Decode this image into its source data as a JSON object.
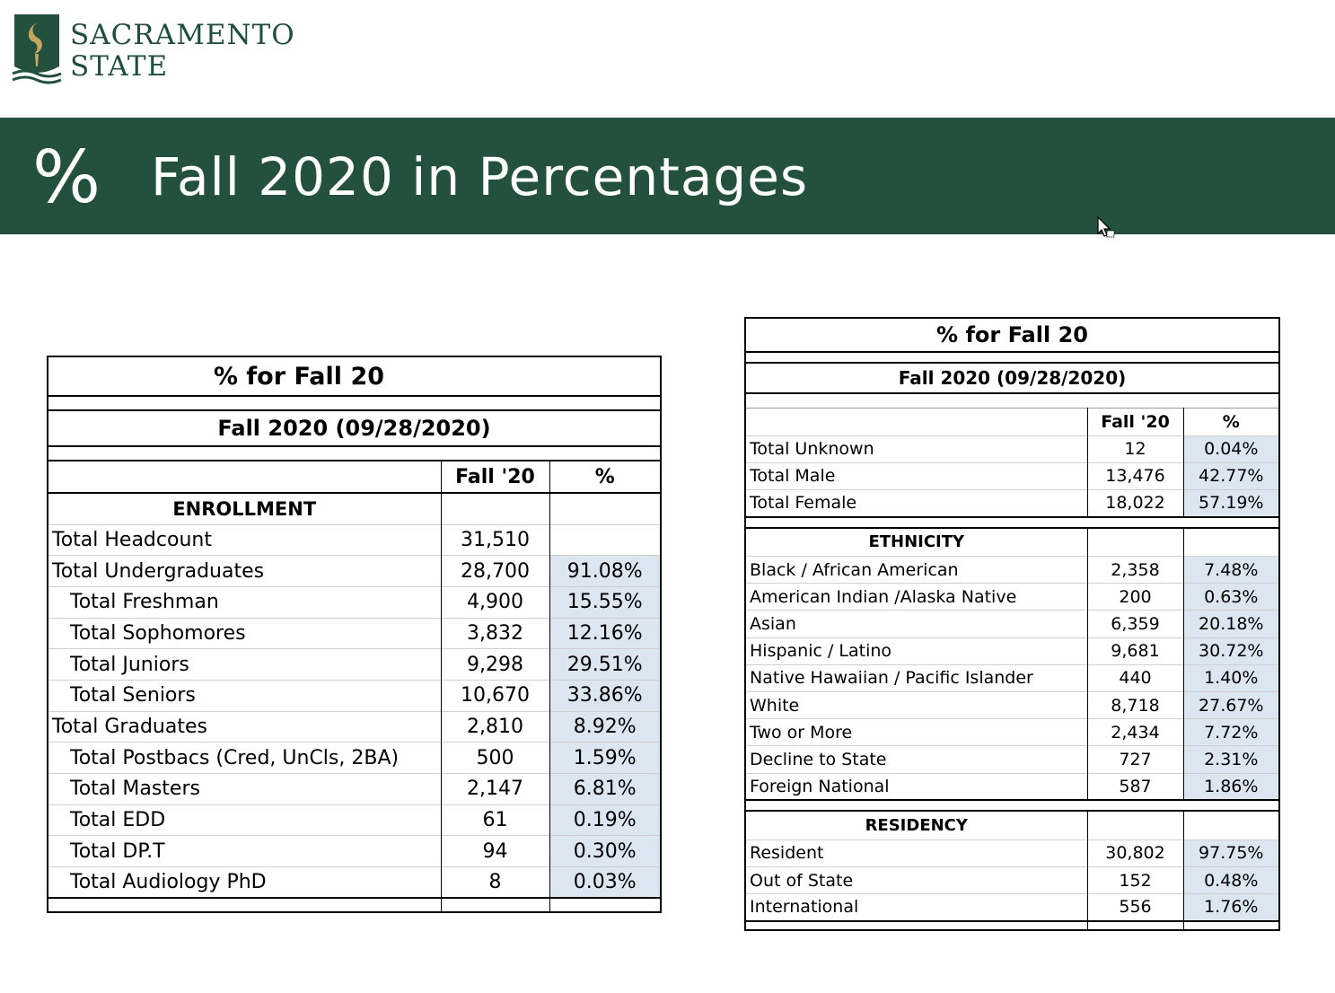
{
  "logo": {
    "line1": "SACRAMENTO",
    "line2": "STATE"
  },
  "banner": {
    "symbol": "%",
    "title": "Fall 2020 in Percentages"
  },
  "colors": {
    "brand_green": "#24513e",
    "pct_fill": "#dce6f1"
  },
  "left_table": {
    "title": "% for Fall 20",
    "subtitle": "Fall 2020  (09/28/2020)",
    "col_fall": "Fall '20",
    "col_pct": "%",
    "section": "ENROLLMENT",
    "rows": [
      {
        "label": "Total Headcount",
        "value": "31,510",
        "pct": ""
      },
      {
        "label": "Total Undergraduates",
        "value": "28,700",
        "pct": "91.08%"
      },
      {
        "label": "Total Freshman",
        "value": "4,900",
        "pct": "15.55%"
      },
      {
        "label": "Total Sophomores",
        "value": "3,832",
        "pct": "12.16%"
      },
      {
        "label": "Total Juniors",
        "value": "9,298",
        "pct": "29.51%"
      },
      {
        "label": "Total Seniors",
        "value": "10,670",
        "pct": "33.86%"
      },
      {
        "label": "Total Graduates",
        "value": "2,810",
        "pct": "8.92%"
      },
      {
        "label": "Total Postbacs (Cred, UnCls, 2BA)",
        "value": "500",
        "pct": "1.59%"
      },
      {
        "label": "Total Masters",
        "value": "2,147",
        "pct": "6.81%"
      },
      {
        "label": "Total EDD",
        "value": "61",
        "pct": "0.19%"
      },
      {
        "label": "Total DP.T",
        "value": "94",
        "pct": "0.30%"
      },
      {
        "label": "Total Audiology PhD",
        "value": "8",
        "pct": "0.03%"
      }
    ]
  },
  "right_table": {
    "title": "% for Fall 20",
    "subtitle": "Fall 2020  (09/28/2020)",
    "col_fall": "Fall '20",
    "col_pct": "%",
    "gender_rows": [
      {
        "label": "Total Unknown",
        "value": "12",
        "pct": "0.04%"
      },
      {
        "label": "Total Male",
        "value": "13,476",
        "pct": "42.77%"
      },
      {
        "label": "Total Female",
        "value": "18,022",
        "pct": "57.19%"
      }
    ],
    "ethnicity_title": "ETHNICITY",
    "ethnicity_rows": [
      {
        "label": "Black / African American",
        "value": "2,358",
        "pct": "7.48%"
      },
      {
        "label": "American Indian /Alaska Native",
        "value": "200",
        "pct": "0.63%"
      },
      {
        "label": "Asian",
        "value": "6,359",
        "pct": "20.18%"
      },
      {
        "label": "Hispanic / Latino",
        "value": "9,681",
        "pct": "30.72%"
      },
      {
        "label": "Native Hawaiian / Pacific Islander",
        "value": "440",
        "pct": "1.40%"
      },
      {
        "label": "White",
        "value": "8,718",
        "pct": "27.67%"
      },
      {
        "label": "Two or More",
        "value": "2,434",
        "pct": "7.72%"
      },
      {
        "label": "Decline to State",
        "value": "727",
        "pct": "2.31%"
      },
      {
        "label": "Foreign National",
        "value": "587",
        "pct": "1.86%"
      }
    ],
    "residency_title": "RESIDENCY",
    "residency_rows": [
      {
        "label": "Resident",
        "value": "30,802",
        "pct": "97.75%"
      },
      {
        "label": "Out of State",
        "value": "152",
        "pct": "0.48%"
      },
      {
        "label": "International",
        "value": "556",
        "pct": "1.76%"
      }
    ]
  }
}
